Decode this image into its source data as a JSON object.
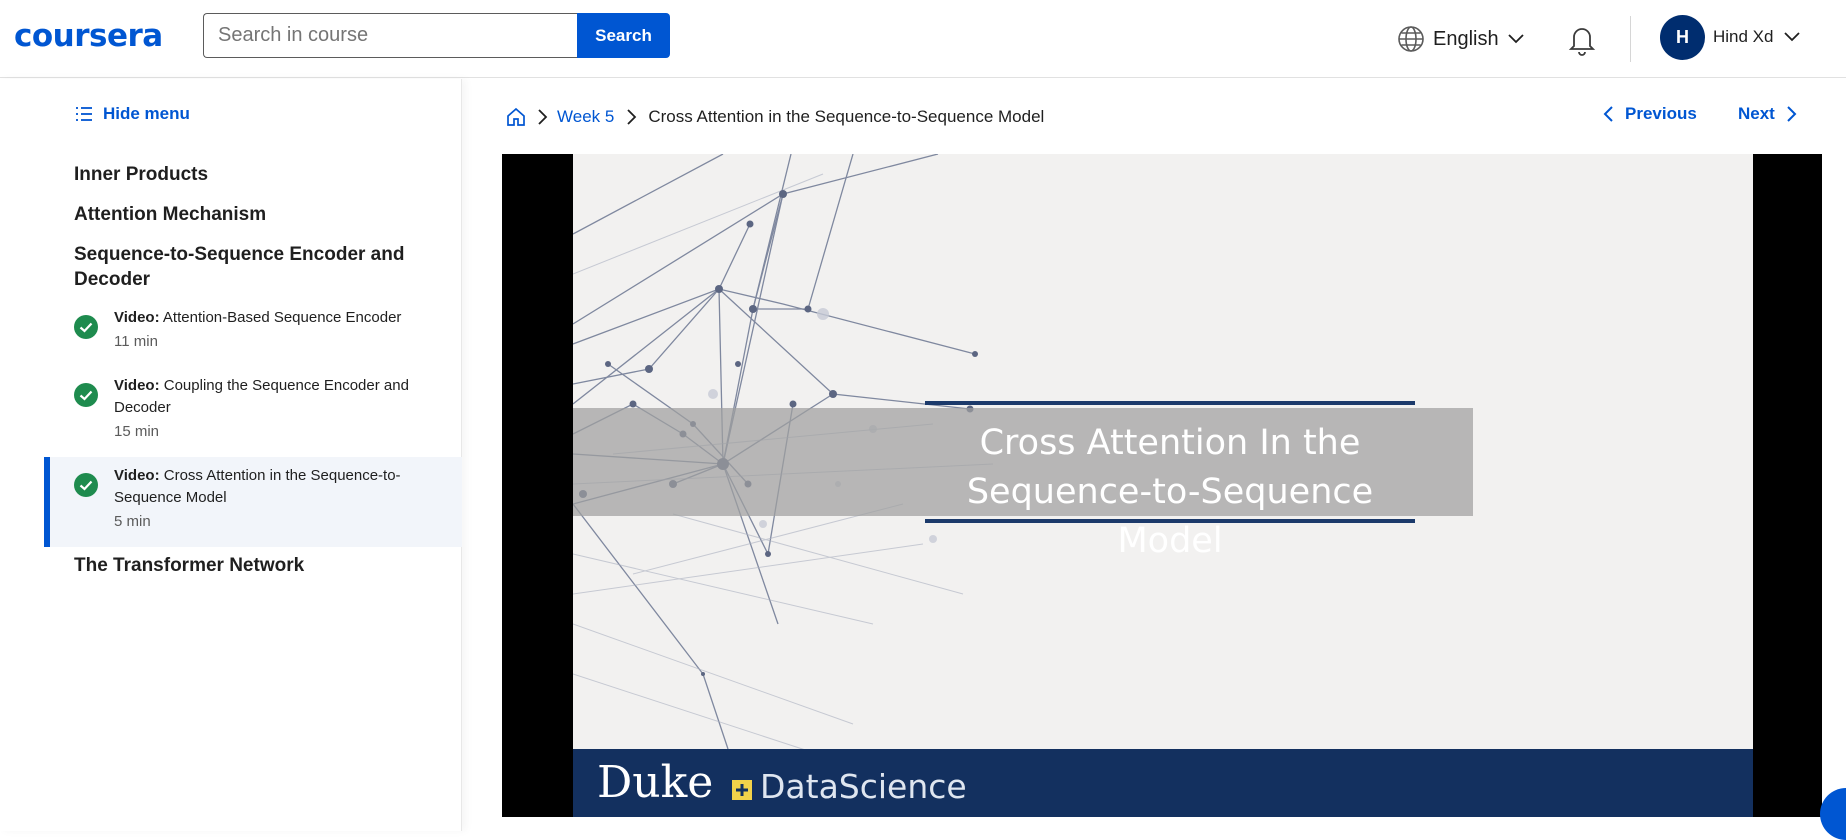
{
  "header": {
    "logo": "coursera",
    "search_placeholder": "Search in course",
    "search_button": "Search",
    "language": "English",
    "avatar_initial": "H",
    "username": "Hind Xd"
  },
  "sidebar": {
    "hide_menu": "Hide menu",
    "sections": [
      {
        "title": "Inner Products"
      },
      {
        "title": "Attention Mechanism"
      },
      {
        "title": "Sequence-to-Sequence Encoder and Decoder"
      },
      {
        "title": "The Transformer Network"
      }
    ],
    "items": [
      {
        "type": "Video:",
        "title": "Attention-Based Sequence Encoder",
        "duration": "11 min",
        "completed": true,
        "active": false
      },
      {
        "type": "Video:",
        "title": "Coupling the Sequence Encoder and Decoder",
        "duration": "15 min",
        "completed": true,
        "active": false
      },
      {
        "type": "Video:",
        "title": "Cross Attention in the Sequence-to-Sequence Model",
        "duration": "5 min",
        "completed": true,
        "active": true
      }
    ]
  },
  "breadcrumb": {
    "week": "Week 5",
    "current": "Cross Attention in the Sequence-to-Sequence Model"
  },
  "nav": {
    "previous": "Previous",
    "next": "Next"
  },
  "video": {
    "slide_title_line1": "Cross Attention In the",
    "slide_title_line2": "Sequence-to-Sequence Model",
    "footer_brand": "Duke",
    "footer_sub": "DataScience"
  },
  "colors": {
    "accent": "#0056d2",
    "success": "#1e8b4e",
    "footer": "#13305f"
  }
}
